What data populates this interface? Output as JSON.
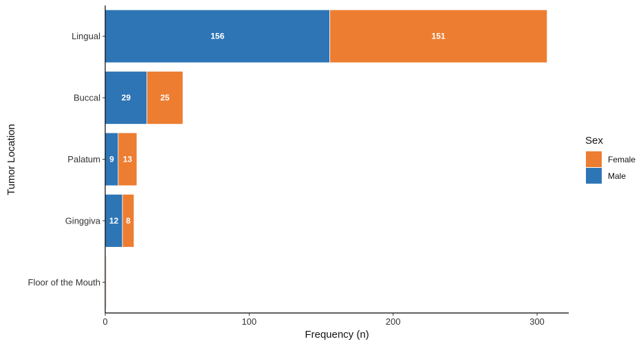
{
  "chart_data": {
    "type": "bar",
    "orientation": "horizontal",
    "stacked": true,
    "categories": [
      "Lingual",
      "Buccal",
      "Palatum",
      "Ginggiva",
      "Floor of the Mouth"
    ],
    "series": [
      {
        "name": "Male",
        "color": "#2e75b6",
        "values": [
          156,
          29,
          9,
          12,
          0.5
        ]
      },
      {
        "name": "Female",
        "color": "#ed7d31",
        "values": [
          151,
          25,
          13,
          8,
          0.5
        ]
      }
    ],
    "data_labels": {
      "Male": [
        "156",
        "29",
        "9",
        "12",
        ""
      ],
      "Female": [
        "151",
        "25",
        "13",
        "8",
        ""
      ]
    },
    "xlabel": "Frequency (n)",
    "ylabel": "Tumor Location",
    "xlim": [
      0,
      322
    ],
    "xticks": [
      0,
      100,
      200,
      300
    ],
    "grid": false,
    "legend": {
      "title": "Sex",
      "position": "right",
      "entries": [
        {
          "label": "Female",
          "color": "#ed7d31"
        },
        {
          "label": "Male",
          "color": "#2e75b6"
        }
      ]
    }
  }
}
